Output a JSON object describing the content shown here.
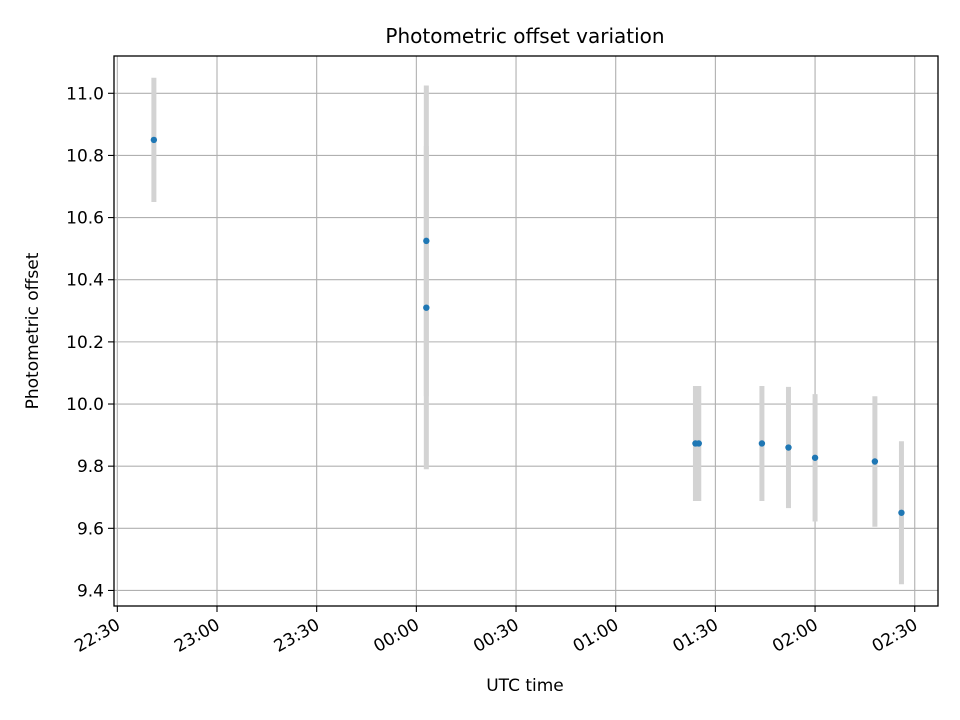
{
  "chart_data": {
    "type": "scatter",
    "title": "Photometric offset variation",
    "xlabel": "UTC time",
    "ylabel": "Photometric offset",
    "xlim": [
      "22:29",
      "02:37"
    ],
    "ylim": [
      9.35,
      11.12
    ],
    "x_ticks": [
      "22:30",
      "23:00",
      "23:30",
      "00:00",
      "00:30",
      "01:00",
      "01:30",
      "02:00",
      "02:30"
    ],
    "y_ticks": [
      9.4,
      9.6,
      9.8,
      10.0,
      10.2,
      10.4,
      10.6,
      10.8,
      11.0
    ],
    "grid": true,
    "marker_color": "#1f77b4",
    "errorbar_color": "#d3d3d3",
    "points": [
      {
        "time": "22:41",
        "value": 10.85,
        "error": 0.2
      },
      {
        "time": "00:03",
        "value": 10.525,
        "error": 0.5
      },
      {
        "time": "00:03",
        "value": 10.31,
        "error": 0.52
      },
      {
        "time": "01:24",
        "value": 9.873,
        "error": 0.185
      },
      {
        "time": "01:25",
        "value": 9.873,
        "error": 0.185
      },
      {
        "time": "01:44",
        "value": 9.873,
        "error": 0.185
      },
      {
        "time": "01:52",
        "value": 9.86,
        "error": 0.195
      },
      {
        "time": "02:00",
        "value": 9.827,
        "error": 0.205
      },
      {
        "time": "02:18",
        "value": 9.815,
        "error": 0.21
      },
      {
        "time": "02:26",
        "value": 9.65,
        "error": 0.23
      }
    ]
  }
}
